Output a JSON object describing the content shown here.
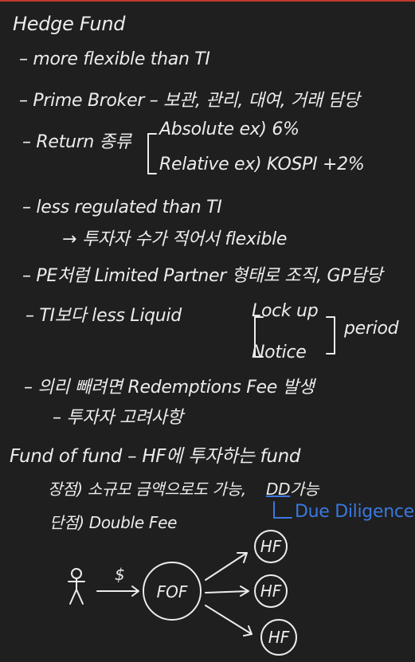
{
  "title": "Hedge Fund",
  "lines": {
    "l1": "– more flexible than TI",
    "l2": "– Prime Broker – 보관, 관리, 대여, 거래 담당",
    "l3a": "– Return 종류",
    "l3b": "Absolute   ex) 6%",
    "l3c": "Relative    ex) KOSPI +2%",
    "l4": "– less regulated than TI",
    "l5": "→ 투자자 수가 적어서 flexible",
    "l6": "– PE처럼 Limited Partner 형태로 조직, GP담당",
    "l7a": "– TI보다 less Liquid",
    "l7b": "Lock up",
    "l7c": "Notice",
    "l7d": "period",
    "l8": "– 의리 빼려면 Redemptions Fee 발생",
    "l9": "– 투자자 고려사항",
    "l10": "Fund of fund – HF에 투자하는 fund",
    "l11a": "장점) 소규모 금액으로도 가능,",
    "l11b": "DD",
    "l11c": "가능",
    "l12": "단점) Double Fee",
    "note": "Due Diligence"
  },
  "diagram": {
    "money_symbol": "$",
    "hub": "FOF",
    "nodes": [
      "HF",
      "HF",
      "HF"
    ]
  },
  "colors": {
    "background": "#1f1f1f",
    "ink": "#ececec",
    "annotation": "#3a78e0",
    "top_bar": "#c0392b"
  }
}
